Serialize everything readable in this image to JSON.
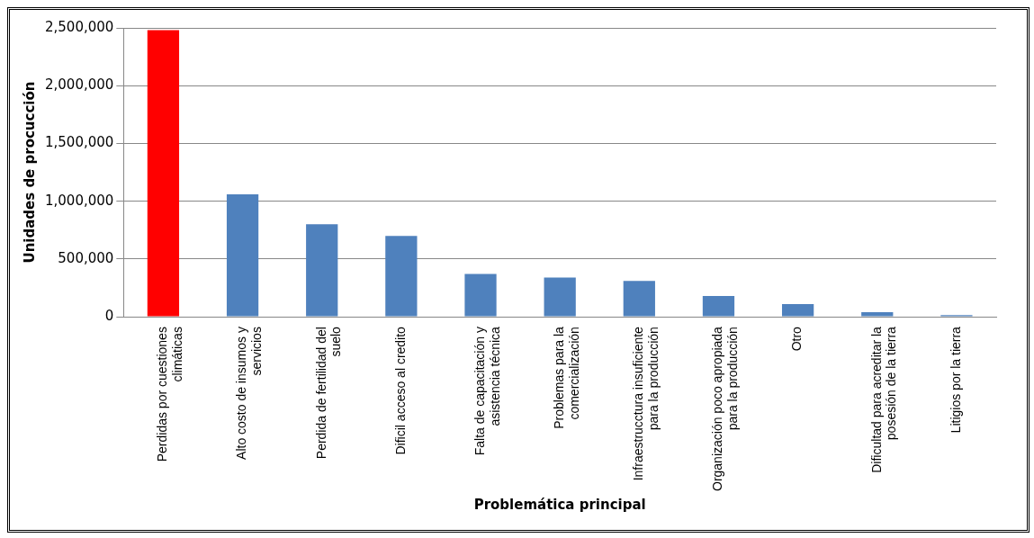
{
  "chart_data": {
    "type": "bar",
    "xlabel": "Problemática principal",
    "ylabel": "Unidades de procucción",
    "categories": [
      "Perdidas por cuestiones climáticas",
      "Alto costo de insumos y servicios",
      "Perdida de fertilidad del suelo",
      "Dificil acceso al credito",
      "Falta de capacitación y asistencia técnica",
      "Problemas para la comercialización",
      "Infraestrucctura insuficiente para la producción",
      "Organización poco apropiada para la producción",
      "Otro",
      "Dificultad para acreditar la posesión de la tierra",
      "Litigios por la tierra"
    ],
    "values": [
      2480000,
      1060000,
      800000,
      700000,
      370000,
      340000,
      310000,
      180000,
      110000,
      40000,
      15000
    ],
    "colors": [
      "#ff0000",
      "#4f81bd",
      "#4f81bd",
      "#4f81bd",
      "#4f81bd",
      "#4f81bd",
      "#4f81bd",
      "#4f81bd",
      "#4f81bd",
      "#4f81bd",
      "#4f81bd"
    ],
    "ylim": [
      0,
      2500000
    ],
    "yticks": [
      0,
      {
        "value": 500000,
        "label": "500,000"
      },
      {
        "value": 1000000,
        "label": "1,000,000"
      },
      {
        "value": 1500000,
        "label": "1,500,000"
      },
      {
        "value": 2000000,
        "label": "2,000,000"
      },
      {
        "value": 2500000,
        "label": "2,500,000"
      }
    ],
    "grid": "y",
    "legend": false
  }
}
